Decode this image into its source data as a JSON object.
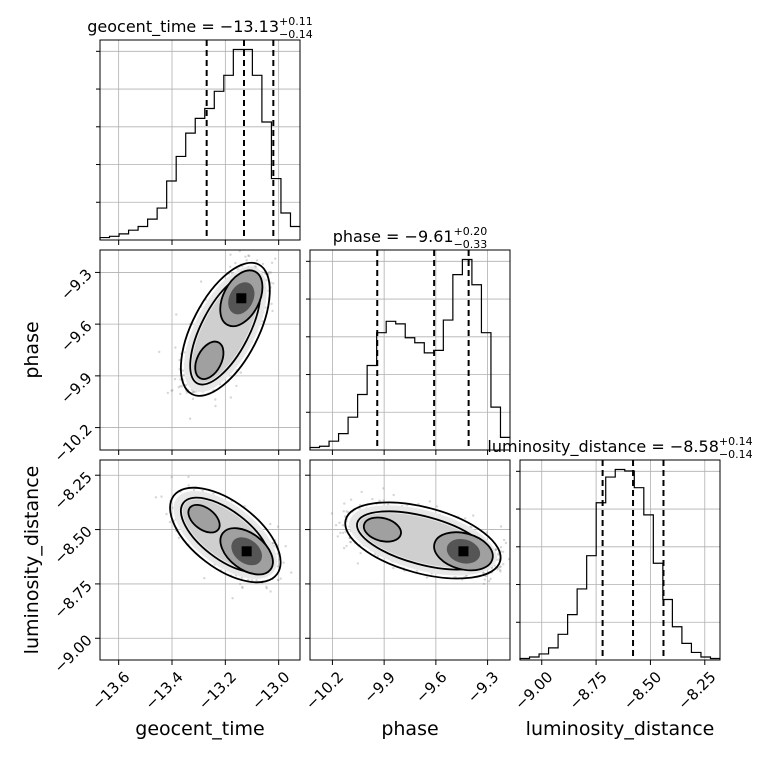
{
  "chart_data": {
    "type": "corner",
    "parameters": [
      {
        "name": "geocent_time",
        "label": "geocent_time",
        "median": -13.13,
        "err_plus": 0.11,
        "err_minus": 0.14,
        "title_prefix": "geocent_time = −13.13",
        "title_sup": "+0.11",
        "title_sub": "−0.14",
        "quantiles": [
          -13.27,
          -13.13,
          -13.02
        ],
        "range": [
          -13.67,
          -12.92
        ],
        "ticks": [
          -13.6,
          -13.4,
          -13.2,
          -13.0
        ],
        "tick_labels": [
          "−13.6",
          "−13.4",
          "−13.2",
          "−13.0"
        ],
        "hist": [
          2,
          3,
          5,
          8,
          11,
          17,
          26,
          48,
          68,
          87,
          99,
          107,
          121,
          134,
          155,
          155,
          134,
          96,
          50,
          22,
          11
        ]
      },
      {
        "name": "phase",
        "label": "phase",
        "median": -9.61,
        "err_plus": 0.2,
        "err_minus": 0.33,
        "title_prefix": "phase = −9.61",
        "title_sup": "+0.20",
        "title_sub": "−0.33",
        "quantiles": [
          -9.94,
          -9.61,
          -9.41
        ],
        "range": [
          -10.33,
          -9.17
        ],
        "ticks": [
          -10.2,
          -9.9,
          -9.6,
          -9.3
        ],
        "tick_labels": [
          "−10.2",
          "−9.9",
          "−9.6",
          "−9.3"
        ],
        "hist": [
          2,
          3,
          7,
          13,
          26,
          44,
          67,
          93,
          102,
          100,
          89,
          85,
          77,
          79,
          103,
          139,
          151,
          131,
          93,
          34,
          10
        ]
      },
      {
        "name": "luminosity_distance",
        "label": "luminosity_distance",
        "median": -8.58,
        "err_plus": 0.14,
        "err_minus": 0.14,
        "title_prefix": "luminosity_distance = −8.58",
        "title_sup": "+0.14",
        "title_sub": "−0.14",
        "quantiles": [
          -8.72,
          -8.58,
          -8.44
        ],
        "range": [
          -9.1,
          -8.18
        ],
        "ticks": [
          -9.0,
          -8.75,
          -8.5,
          -8.25
        ],
        "tick_labels": [
          "−9.00",
          "−8.75",
          "−8.50",
          "−8.25"
        ],
        "hist": [
          1,
          2,
          4,
          8,
          17,
          30,
          47,
          69,
          104,
          121,
          126,
          125,
          114,
          96,
          64,
          40,
          22,
          11,
          5,
          2,
          1
        ]
      }
    ],
    "pairs": [
      {
        "x": "geocent_time",
        "y": "phase",
        "peaks": [
          {
            "x": -13.14,
            "y": -9.45,
            "weight": 1.0
          },
          {
            "x": -13.26,
            "y": -9.81,
            "weight": 0.55
          }
        ]
      },
      {
        "x": "geocent_time",
        "y": "luminosity_distance",
        "peaks": [
          {
            "x": -13.12,
            "y": -8.6,
            "weight": 1.0
          },
          {
            "x": -13.28,
            "y": -8.45,
            "weight": 0.45
          }
        ]
      },
      {
        "x": "phase",
        "y": "luminosity_distance",
        "peaks": [
          {
            "x": -9.44,
            "y": -8.6,
            "weight": 1.0
          },
          {
            "x": -9.91,
            "y": -8.5,
            "weight": 0.5
          }
        ]
      }
    ],
    "grid": true,
    "quantile_levels": [
      0.16,
      0.5,
      0.84
    ]
  }
}
